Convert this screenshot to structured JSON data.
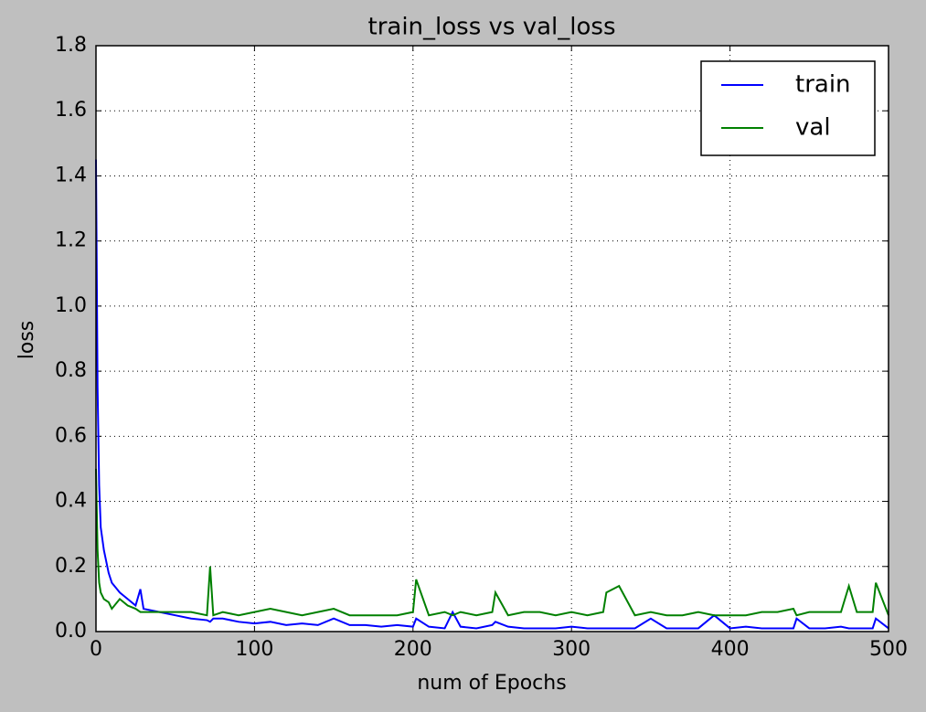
{
  "chart_data": {
    "type": "line",
    "title": "train_loss vs val_loss",
    "xlabel": "num of Epochs",
    "ylabel": "loss",
    "x": [
      0,
      1,
      2,
      3,
      5,
      8,
      10,
      15,
      20,
      25,
      28,
      30,
      40,
      50,
      60,
      70,
      72,
      74,
      80,
      90,
      100,
      110,
      120,
      130,
      140,
      150,
      160,
      170,
      180,
      190,
      200,
      202,
      210,
      220,
      225,
      230,
      240,
      250,
      252,
      260,
      270,
      280,
      290,
      300,
      310,
      320,
      322,
      330,
      340,
      350,
      360,
      370,
      380,
      390,
      400,
      410,
      420,
      430,
      440,
      442,
      450,
      460,
      470,
      475,
      480,
      490,
      492,
      500
    ],
    "series": [
      {
        "name": "train",
        "color": "#0000ff",
        "values": [
          1.45,
          0.75,
          0.45,
          0.32,
          0.25,
          0.18,
          0.15,
          0.12,
          0.1,
          0.08,
          0.13,
          0.07,
          0.06,
          0.05,
          0.04,
          0.035,
          0.03,
          0.04,
          0.04,
          0.03,
          0.025,
          0.03,
          0.02,
          0.025,
          0.02,
          0.04,
          0.02,
          0.02,
          0.015,
          0.02,
          0.015,
          0.04,
          0.015,
          0.01,
          0.06,
          0.015,
          0.01,
          0.02,
          0.03,
          0.015,
          0.01,
          0.01,
          0.01,
          0.015,
          0.01,
          0.01,
          0.01,
          0.01,
          0.01,
          0.04,
          0.01,
          0.01,
          0.01,
          0.05,
          0.01,
          0.015,
          0.01,
          0.01,
          0.01,
          0.04,
          0.01,
          0.01,
          0.015,
          0.01,
          0.01,
          0.01,
          0.04,
          0.01
        ]
      },
      {
        "name": "val",
        "color": "#008000",
        "values": [
          0.5,
          0.25,
          0.15,
          0.12,
          0.1,
          0.09,
          0.07,
          0.1,
          0.08,
          0.07,
          0.06,
          0.06,
          0.06,
          0.06,
          0.06,
          0.05,
          0.2,
          0.05,
          0.06,
          0.05,
          0.06,
          0.07,
          0.06,
          0.05,
          0.06,
          0.07,
          0.05,
          0.05,
          0.05,
          0.05,
          0.06,
          0.16,
          0.05,
          0.06,
          0.05,
          0.06,
          0.05,
          0.06,
          0.12,
          0.05,
          0.06,
          0.06,
          0.05,
          0.06,
          0.05,
          0.06,
          0.12,
          0.14,
          0.05,
          0.06,
          0.05,
          0.05,
          0.06,
          0.05,
          0.05,
          0.05,
          0.06,
          0.06,
          0.07,
          0.05,
          0.06,
          0.06,
          0.06,
          0.14,
          0.06,
          0.06,
          0.15,
          0.05
        ]
      }
    ],
    "xlim": [
      0,
      500
    ],
    "xticks": [
      0,
      100,
      200,
      300,
      400,
      500
    ],
    "ylim": [
      0,
      1.8
    ],
    "yticks": [
      {
        "value": 0,
        "label": "0.0"
      },
      0.2,
      0.4,
      0.6,
      0.8,
      {
        "value": 1,
        "label": "1.0"
      },
      1.2,
      1.4,
      1.6,
      1.8
    ],
    "grid": true,
    "legend": "upper right"
  }
}
